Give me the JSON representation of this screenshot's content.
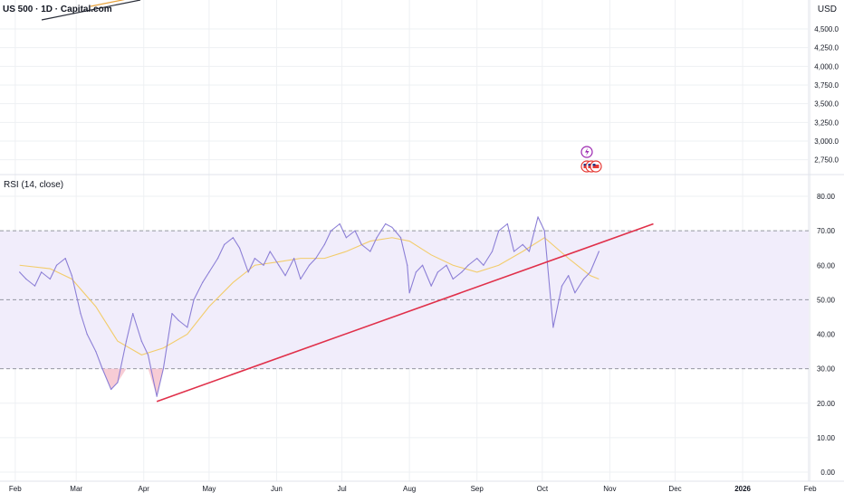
{
  "symbol_title": "US 500 · 1D · Capital.com",
  "currency": "USD",
  "price_axis": {
    "ticks": [
      {
        "v": 4500,
        "label": "4,500.0"
      },
      {
        "v": 4250,
        "label": "4,250.0"
      },
      {
        "v": 4000,
        "label": "4,000.0"
      },
      {
        "v": 3750,
        "label": "3,750.0"
      },
      {
        "v": 3500,
        "label": "3,500.0"
      },
      {
        "v": 3250,
        "label": "3,250.0"
      },
      {
        "v": 3000,
        "label": "3,000.0"
      },
      {
        "v": 2750,
        "label": "2,750.0"
      }
    ]
  },
  "events": {
    "icon_top": "lightning-icon",
    "icon_bottom": "us-flag-icons"
  },
  "colors": {
    "rsi_line": "#8c7fd6",
    "rsi_ma": "#f2cc6b",
    "trendline": "#e0304a",
    "band_fill": "#f1edfb",
    "oversold_fill": "#f6c6d0",
    "grid": "#eef0f3",
    "dashed": "#9598a1"
  },
  "chart_data": {
    "type": "line",
    "title": "RSI (14, close)",
    "ylim": [
      0,
      80
    ],
    "y_ticks": [
      "80.00",
      "70.00",
      "60.00",
      "50.00",
      "40.00",
      "30.00",
      "20.00",
      "10.00",
      "0.00"
    ],
    "x_ticks": [
      "Feb",
      "Mar",
      "Apr",
      "May",
      "Jun",
      "Jul",
      "Aug",
      "Sep",
      "Oct",
      "Nov",
      "Dec",
      "2026",
      "Feb"
    ],
    "bands": {
      "upper": 70,
      "middle": 50,
      "lower": 30
    },
    "series": [
      {
        "key": "rsi",
        "x": [
          "2025-02-03",
          "2025-02-06",
          "2025-02-10",
          "2025-02-13",
          "2025-02-17",
          "2025-02-20",
          "2025-02-24",
          "2025-02-27",
          "2025-03-03",
          "2025-03-06",
          "2025-03-10",
          "2025-03-13",
          "2025-03-17",
          "2025-03-20",
          "2025-03-24",
          "2025-03-27",
          "2025-03-31",
          "2025-04-03",
          "2025-04-07",
          "2025-04-10",
          "2025-04-14",
          "2025-04-17",
          "2025-04-21",
          "2025-04-24",
          "2025-04-28",
          "2025-05-01",
          "2025-05-05",
          "2025-05-08",
          "2025-05-12",
          "2025-05-15",
          "2025-05-19",
          "2025-05-22",
          "2025-05-26",
          "2025-05-29",
          "2025-06-02",
          "2025-06-05",
          "2025-06-09",
          "2025-06-12",
          "2025-06-16",
          "2025-06-19",
          "2025-06-23",
          "2025-06-26",
          "2025-06-30",
          "2025-07-03",
          "2025-07-07",
          "2025-07-10",
          "2025-07-14",
          "2025-07-17",
          "2025-07-21",
          "2025-07-24",
          "2025-07-28",
          "2025-07-31",
          "2025-08-01",
          "2025-08-04",
          "2025-08-07",
          "2025-08-11",
          "2025-08-14",
          "2025-08-18",
          "2025-08-21",
          "2025-08-25",
          "2025-08-28",
          "2025-09-01",
          "2025-09-04",
          "2025-09-08",
          "2025-09-11",
          "2025-09-15",
          "2025-09-18",
          "2025-09-22",
          "2025-09-25",
          "2025-09-29",
          "2025-10-02",
          "2025-10-06",
          "2025-10-10",
          "2025-10-13",
          "2025-10-16",
          "2025-10-20",
          "2025-10-23",
          "2025-10-27"
        ],
        "values": [
          58,
          56,
          54,
          58,
          56,
          60,
          62,
          57,
          46,
          40,
          35,
          30,
          24,
          26,
          38,
          46,
          38,
          34,
          22,
          30,
          46,
          44,
          42,
          50,
          55,
          58,
          62,
          66,
          68,
          65,
          58,
          62,
          60,
          64,
          60,
          57,
          62,
          56,
          60,
          62,
          66,
          70,
          72,
          68,
          70,
          66,
          64,
          68,
          72,
          71,
          68,
          60,
          52,
          58,
          60,
          54,
          58,
          60,
          56,
          58,
          60,
          62,
          60,
          64,
          70,
          72,
          64,
          66,
          64,
          74,
          70,
          42,
          54,
          57,
          52,
          56,
          58,
          64
        ]
      },
      {
        "key": "rsi_ma",
        "x": [
          "2025-02-03",
          "2025-02-17",
          "2025-02-27",
          "2025-03-10",
          "2025-03-20",
          "2025-03-31",
          "2025-04-10",
          "2025-04-21",
          "2025-05-01",
          "2025-05-12",
          "2025-05-22",
          "2025-06-02",
          "2025-06-12",
          "2025-06-23",
          "2025-07-03",
          "2025-07-14",
          "2025-07-24",
          "2025-08-01",
          "2025-08-11",
          "2025-08-21",
          "2025-09-01",
          "2025-09-11",
          "2025-09-22",
          "2025-10-02",
          "2025-10-13",
          "2025-10-23",
          "2025-10-27"
        ],
        "values": [
          60,
          59,
          56,
          48,
          38,
          34,
          36,
          40,
          48,
          55,
          60,
          61,
          62,
          62,
          64,
          67,
          68,
          67,
          63,
          60,
          58,
          60,
          64,
          68,
          62,
          57,
          56
        ]
      }
    ],
    "trendline": {
      "x": [
        "2025-04-07",
        "2025-11-21"
      ],
      "y": [
        20.5,
        72
      ]
    }
  }
}
